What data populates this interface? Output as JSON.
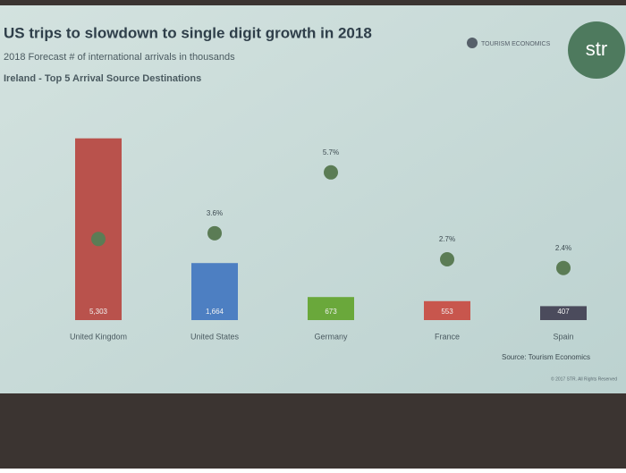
{
  "chart_data": {
    "type": "bar",
    "title": "US trips to slowdown to single digit growth in 2018",
    "subtitle": "2018 Forecast # of international arrivals in thousands",
    "heading": "Ireland - Top 5 Arrival Source Destinations",
    "brand": "TOURISM ECONOMICS",
    "logo": "str",
    "source": "Source: Tourism Economics",
    "copyright": "© 2017 STR. All Rights Reserved",
    "categories": [
      "United Kingdom",
      "United States",
      "Germany",
      "France",
      "Spain"
    ],
    "series": [
      {
        "colors": [
          "#b9524c",
          "#4d7fc2",
          "#6aa83b",
          "#c8564d",
          "#4b4b5c"
        ],
        "values": [
          5303,
          1664,
          673,
          553,
          407
        ],
        "value_labels": [
          "5,303",
          "1,664",
          "673",
          "553",
          "407"
        ]
      },
      {
        "axis": "y2",
        "color": "#5b7c55",
        "values": [
          3.4,
          3.6,
          5.7,
          2.7,
          2.4
        ],
        "value_labels": [
          null,
          "3.6%",
          "5.7%",
          "2.7%",
          "2.4%"
        ]
      }
    ],
    "ylim": [
      0,
      6000
    ],
    "y2lim": [
      0.6,
      7.7
    ]
  }
}
